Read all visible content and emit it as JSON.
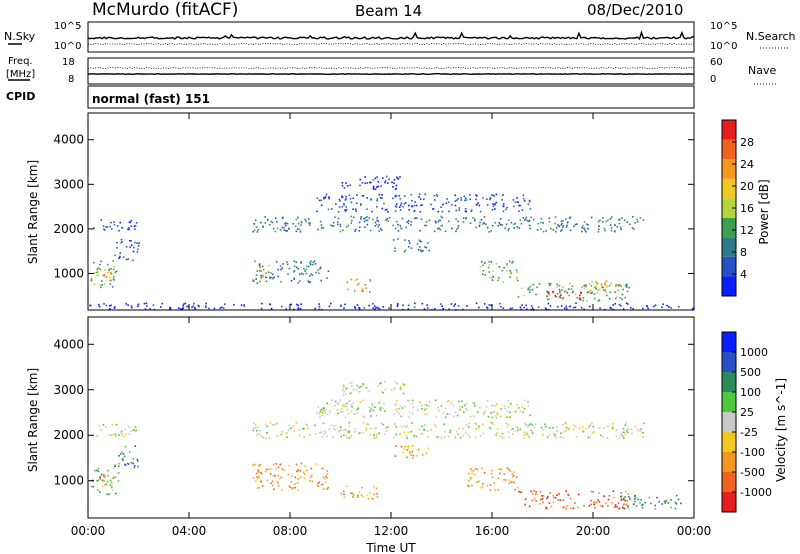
{
  "header": {
    "station": "McMurdo (fitACF)",
    "beam": "Beam 14",
    "date": "08/Dec/2010"
  },
  "noise_panel": {
    "left_label": "N.Sky",
    "right_label": "N.Search",
    "left_ticks": [
      "10^5",
      "10^0"
    ],
    "right_ticks": [
      "10^5",
      "10^0"
    ]
  },
  "freq_panel": {
    "left_label_1": "Freq.",
    "left_label_2": "[MHz]",
    "right_label": "Nave",
    "left_ticks": [
      "18",
      "8"
    ],
    "right_ticks": [
      "60",
      "0"
    ]
  },
  "cpid_panel": {
    "label": "CPID",
    "value": "normal (fast) 151"
  },
  "colors": {
    "power": [
      "#0a1eff",
      "#2a50c8",
      "#2f7a8a",
      "#3da04e",
      "#b4d63c",
      "#f0c81e",
      "#f5961e",
      "#f0641e",
      "#e61e1e"
    ],
    "velocity": [
      "#e61e1e",
      "#f0641e",
      "#f5961e",
      "#f0c81e",
      "#c8c8c8",
      "#4ec83c",
      "#2f8a5a",
      "#2a50c8",
      "#0a1eff"
    ]
  },
  "chart_data": [
    {
      "type": "heatmap",
      "name": "power",
      "ylabel": "Slant Range [km]",
      "ylim": [
        180,
        4600
      ],
      "y_ticks": [
        1000,
        2000,
        3000,
        4000
      ],
      "xlim": [
        0,
        24
      ],
      "colorbar_label": "Power [dB]",
      "colorbar_ticks": [
        "4",
        "8",
        "12",
        "16",
        "20",
        "24",
        "28"
      ],
      "features": [
        {
          "t": [
            0.2,
            1.9
          ],
          "r": [
            1950,
            2250
          ],
          "v": 1
        },
        {
          "t": [
            0.1,
            1.2
          ],
          "r": [
            700,
            1300
          ],
          "v": 3
        },
        {
          "t": [
            0.4,
            0.9
          ],
          "r": [
            850,
            1150
          ],
          "v": 6
        },
        {
          "t": [
            1.0,
            2.0
          ],
          "r": [
            1300,
            1800
          ],
          "v": 1
        },
        {
          "t": [
            6.5,
            22.0
          ],
          "r": [
            1950,
            2300
          ],
          "v": 2
        },
        {
          "t": [
            9.0,
            17.5
          ],
          "r": [
            2400,
            2800
          ],
          "v": 1
        },
        {
          "t": [
            10.0,
            12.5
          ],
          "r": [
            2900,
            3200
          ],
          "v": 0
        },
        {
          "t": [
            6.5,
            9.5
          ],
          "r": [
            800,
            1300
          ],
          "v": 2
        },
        {
          "t": [
            6.7,
            7.3
          ],
          "r": [
            900,
            1200
          ],
          "v": 6
        },
        {
          "t": [
            10.2,
            11.2
          ],
          "r": [
            600,
            900
          ],
          "v": 6
        },
        {
          "t": [
            12.0,
            13.5
          ],
          "r": [
            1500,
            1800
          ],
          "v": 2
        },
        {
          "t": [
            15.5,
            17.0
          ],
          "r": [
            800,
            1300
          ],
          "v": 3
        },
        {
          "t": [
            17.0,
            21.5
          ],
          "r": [
            400,
            800
          ],
          "v": 3
        },
        {
          "t": [
            18.0,
            19.5
          ],
          "r": [
            420,
            620
          ],
          "v": 8
        },
        {
          "t": [
            19.5,
            21.0
          ],
          "r": [
            600,
            850
          ],
          "v": 6
        },
        {
          "t": [
            0.0,
            24.0
          ],
          "r": [
            200,
            350
          ],
          "v": 0
        }
      ]
    },
    {
      "type": "heatmap",
      "name": "velocity",
      "ylabel": "Slant Range [km]",
      "xlabel": "Time UT",
      "ylim": [
        180,
        4600
      ],
      "y_ticks": [
        1000,
        2000,
        3000,
        4000
      ],
      "xlim": [
        0,
        24
      ],
      "x_ticks": [
        "00:00",
        "04:00",
        "08:00",
        "12:00",
        "16:00",
        "20:00",
        "00:00"
      ],
      "colorbar_label": "Velocity [m s^-1]",
      "colorbar_ticks": [
        "-1000",
        "-500",
        "-100",
        "-25",
        "25",
        "100",
        "500",
        "1000"
      ],
      "features": [
        {
          "t": [
            0.2,
            1.9
          ],
          "r": [
            1950,
            2250
          ],
          "v": 4
        },
        {
          "t": [
            0.1,
            1.2
          ],
          "r": [
            700,
            1300
          ],
          "v": 5
        },
        {
          "t": [
            0.3,
            1.0
          ],
          "r": [
            850,
            1150
          ],
          "v": 2
        },
        {
          "t": [
            1.0,
            2.0
          ],
          "r": [
            1300,
            1800
          ],
          "v": 6
        },
        {
          "t": [
            6.5,
            22.0
          ],
          "r": [
            1950,
            2300
          ],
          "v": 4
        },
        {
          "t": [
            9.0,
            17.5
          ],
          "r": [
            2400,
            2800
          ],
          "v": 4
        },
        {
          "t": [
            10.0,
            12.5
          ],
          "r": [
            2900,
            3200
          ],
          "v": 4
        },
        {
          "t": [
            6.5,
            9.5
          ],
          "r": [
            800,
            1400
          ],
          "v": 2
        },
        {
          "t": [
            10.0,
            11.5
          ],
          "r": [
            600,
            900
          ],
          "v": 2
        },
        {
          "t": [
            12.0,
            13.5
          ],
          "r": [
            1500,
            1800
          ],
          "v": 2
        },
        {
          "t": [
            15.0,
            17.0
          ],
          "r": [
            800,
            1300
          ],
          "v": 2
        },
        {
          "t": [
            17.0,
            21.5
          ],
          "r": [
            400,
            800
          ],
          "v": 1
        },
        {
          "t": [
            21.0,
            23.5
          ],
          "r": [
            400,
            700
          ],
          "v": 6
        }
      ]
    }
  ]
}
